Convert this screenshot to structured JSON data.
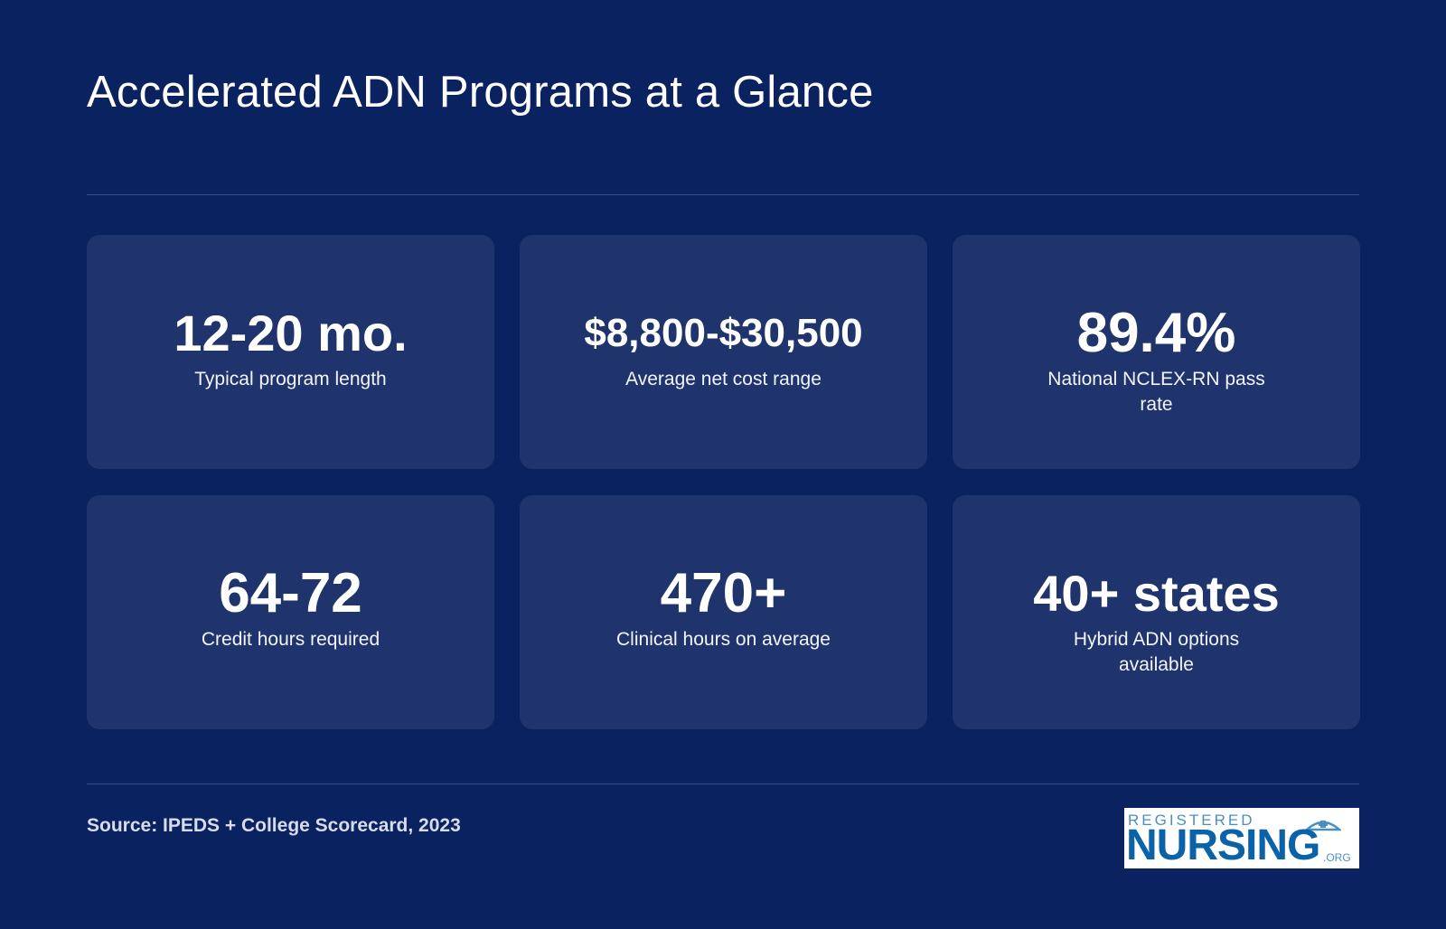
{
  "header": {
    "title": "Accelerated ADN Programs at a Glance"
  },
  "stats": [
    {
      "value": "12-20 mo.",
      "label": "Typical program length"
    },
    {
      "value": "$8,800-$30,500",
      "label": "Average net cost range"
    },
    {
      "value": "89.4%",
      "label": "National NCLEX-RN pass rate"
    },
    {
      "value": "64-72",
      "label": "Credit hours required"
    },
    {
      "value": "470+",
      "label": "Clinical hours on average"
    },
    {
      "value": "40+ states",
      "label": "Hybrid ADN options available"
    }
  ],
  "footer": {
    "source": "Source: IPEDS + College Scorecard, 2023",
    "logo": {
      "top": "REGISTERED",
      "main": "NURSING",
      "suffix": ".ORG"
    }
  },
  "colors": {
    "background": "#0b2261",
    "card": "#1f336d",
    "logo_blue": "#0a62a8"
  }
}
